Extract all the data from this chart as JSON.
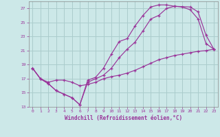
{
  "xlabel": "Windchill (Refroidissement éolien,°C)",
  "bg_color": "#cce8e8",
  "grid_color": "#aacccc",
  "line_color": "#993399",
  "xlim": [
    -0.5,
    23.5
  ],
  "ylim": [
    13,
    28
  ],
  "xticks": [
    0,
    1,
    2,
    3,
    4,
    5,
    6,
    7,
    8,
    9,
    10,
    11,
    12,
    13,
    14,
    15,
    16,
    17,
    18,
    19,
    20,
    21,
    22,
    23
  ],
  "yticks": [
    13,
    15,
    17,
    19,
    21,
    23,
    25,
    27
  ],
  "line1_x": [
    0,
    1,
    2,
    3,
    4,
    5,
    6,
    7,
    8,
    9,
    10,
    11,
    12,
    13,
    14,
    15,
    16,
    17,
    18,
    20,
    21,
    22,
    23
  ],
  "line1_y": [
    18.5,
    17.0,
    16.3,
    15.3,
    14.8,
    14.3,
    13.3,
    16.8,
    17.2,
    18.5,
    20.5,
    22.3,
    22.7,
    24.5,
    26.0,
    27.2,
    27.5,
    27.5,
    27.3,
    27.2,
    26.5,
    23.2,
    21.2
  ],
  "line2_x": [
    0,
    1,
    2,
    3,
    4,
    5,
    6,
    7,
    8,
    9,
    10,
    11,
    12,
    13,
    14,
    15,
    16,
    17,
    18,
    19,
    20,
    21,
    22,
    23
  ],
  "line2_y": [
    18.5,
    17.0,
    16.3,
    15.3,
    14.8,
    14.3,
    13.3,
    16.5,
    17.0,
    17.5,
    18.5,
    20.0,
    21.2,
    22.2,
    23.8,
    25.5,
    26.0,
    27.0,
    27.3,
    27.2,
    26.8,
    25.5,
    22.0,
    21.2
  ],
  "line3_x": [
    0,
    1,
    2,
    3,
    4,
    5,
    6,
    7,
    8,
    9,
    10,
    11,
    12,
    13,
    14,
    15,
    16,
    17,
    18,
    19,
    20,
    21,
    22,
    23
  ],
  "line3_y": [
    18.5,
    17.0,
    16.5,
    16.8,
    16.8,
    16.5,
    16.0,
    16.2,
    16.5,
    17.0,
    17.3,
    17.5,
    17.8,
    18.2,
    18.7,
    19.2,
    19.7,
    20.0,
    20.3,
    20.5,
    20.7,
    20.9,
    21.0,
    21.2
  ]
}
